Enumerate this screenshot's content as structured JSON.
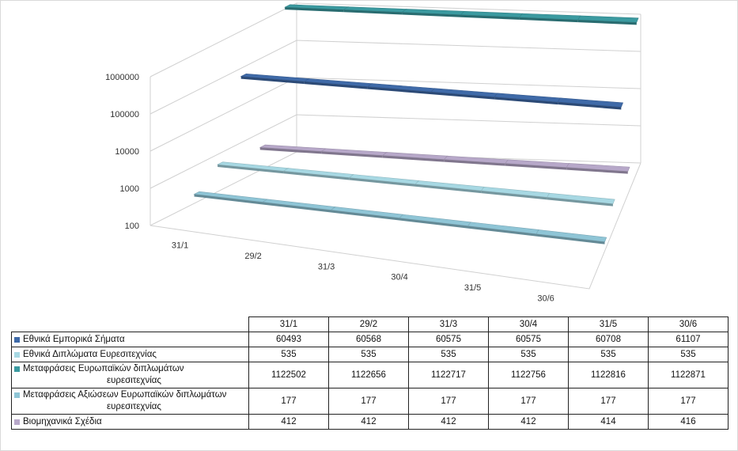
{
  "chart_data": {
    "type": "bar",
    "subtype": "3d-line-log-scale",
    "categories": [
      "31/1",
      "29/2",
      "31/3",
      "30/4",
      "31/5",
      "30/6"
    ],
    "y_scale": "log",
    "y_ticks": [
      "100",
      "1000",
      "10000",
      "100000",
      "1000000"
    ],
    "ylim": [
      100,
      1000000
    ],
    "grid": true,
    "legend": "table-below",
    "series": [
      {
        "name": "Εθνικά Εμπορικά Σήματα",
        "color": "#3f6aa8",
        "values": [
          60493,
          60568,
          60575,
          60575,
          60708,
          61107
        ]
      },
      {
        "name": "Εθνικά Διπλώματα Ευρεσιτεχνίας",
        "color": "#a7d8e3",
        "values": [
          535,
          535,
          535,
          535,
          535,
          535
        ]
      },
      {
        "name": "Μεταφράσεις Ευρωπαϊκών διπλωμάτων ευρεσιτεχνίας",
        "color": "#3b9aa0",
        "values": [
          1122502,
          1122656,
          1122717,
          1122756,
          1122816,
          1122871
        ]
      },
      {
        "name": "Μεταφράσεις Αξιώσεων Ευρωπαϊκών διπλωμάτων ευρεσιτεχνίας",
        "color": "#8fc5d6",
        "values": [
          177,
          177,
          177,
          177,
          177,
          177
        ]
      },
      {
        "name": "Βιομηχανικά Σχέδια",
        "color": "#b7a8c9",
        "values": [
          412,
          412,
          412,
          412,
          414,
          416
        ]
      }
    ]
  },
  "table_values": [
    [
      "60493",
      "60568",
      "60575",
      "60575",
      "60708",
      "61107"
    ],
    [
      "535",
      "535",
      "535",
      "535",
      "535",
      "535"
    ],
    [
      "1122502",
      "1122656",
      "1122717",
      "1122756",
      "1122816",
      "1122871"
    ],
    [
      "177",
      "177",
      "177",
      "177",
      "177",
      "177"
    ],
    [
      "412",
      "412",
      "412",
      "412",
      "414",
      "416"
    ]
  ],
  "legend_lines": [
    [
      "Εθνικά Εμπορικά Σήματα"
    ],
    [
      "Εθνικά Διπλώματα Ευρεσιτεχνίας"
    ],
    [
      "Μεταφράσεις Ευρωπαϊκών διπλωμάτων",
      "ευρεσιτεχνίας"
    ],
    [
      "Μεταφράσεις Αξιώσεων Ευρωπαϊκών διπλωμάτων",
      "ευρεσιτεχνίας"
    ],
    [
      "Βιομηχανικά Σχέδια"
    ]
  ]
}
